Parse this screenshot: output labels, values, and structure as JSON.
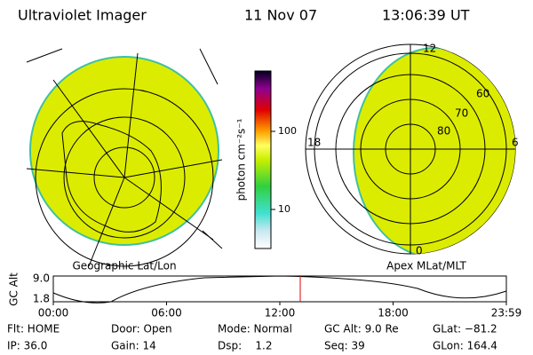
{
  "header": {
    "instrument": "Ultraviolet Imager",
    "date": "11 Nov 07",
    "time": "13:06:39 UT"
  },
  "left_map": {
    "label": "Geographic Lat/Lon"
  },
  "colorbar": {
    "unit_label": "photon cm⁻²s⁻¹",
    "log_scale": true,
    "ticks": [
      100,
      10
    ]
  },
  "right_map": {
    "label": "Apex MLat/MLT",
    "mlt_labels": [
      "12",
      "18",
      "6",
      "0"
    ],
    "lat_labels": [
      "60",
      "70",
      "80"
    ]
  },
  "altitude_plot": {
    "ylabel": "GC Alt",
    "yticks": [
      {
        "value": 9,
        "label": "9.0"
      },
      1.8
    ],
    "xticks": [
      "00:00",
      "06:00",
      "12:00",
      "18:00",
      "23:59"
    ]
  },
  "status": [
    [
      "Flt: HOME",
      "Door: Open",
      "Mode: Normal",
      "GC Alt: 9.0 Re",
      "GLat: −81.2"
    ],
    [
      "IP: 36.0",
      "Gain: 14",
      "Dsp:    1.2",
      "Seq: 39",
      "GLon: 164.4"
    ]
  ]
}
